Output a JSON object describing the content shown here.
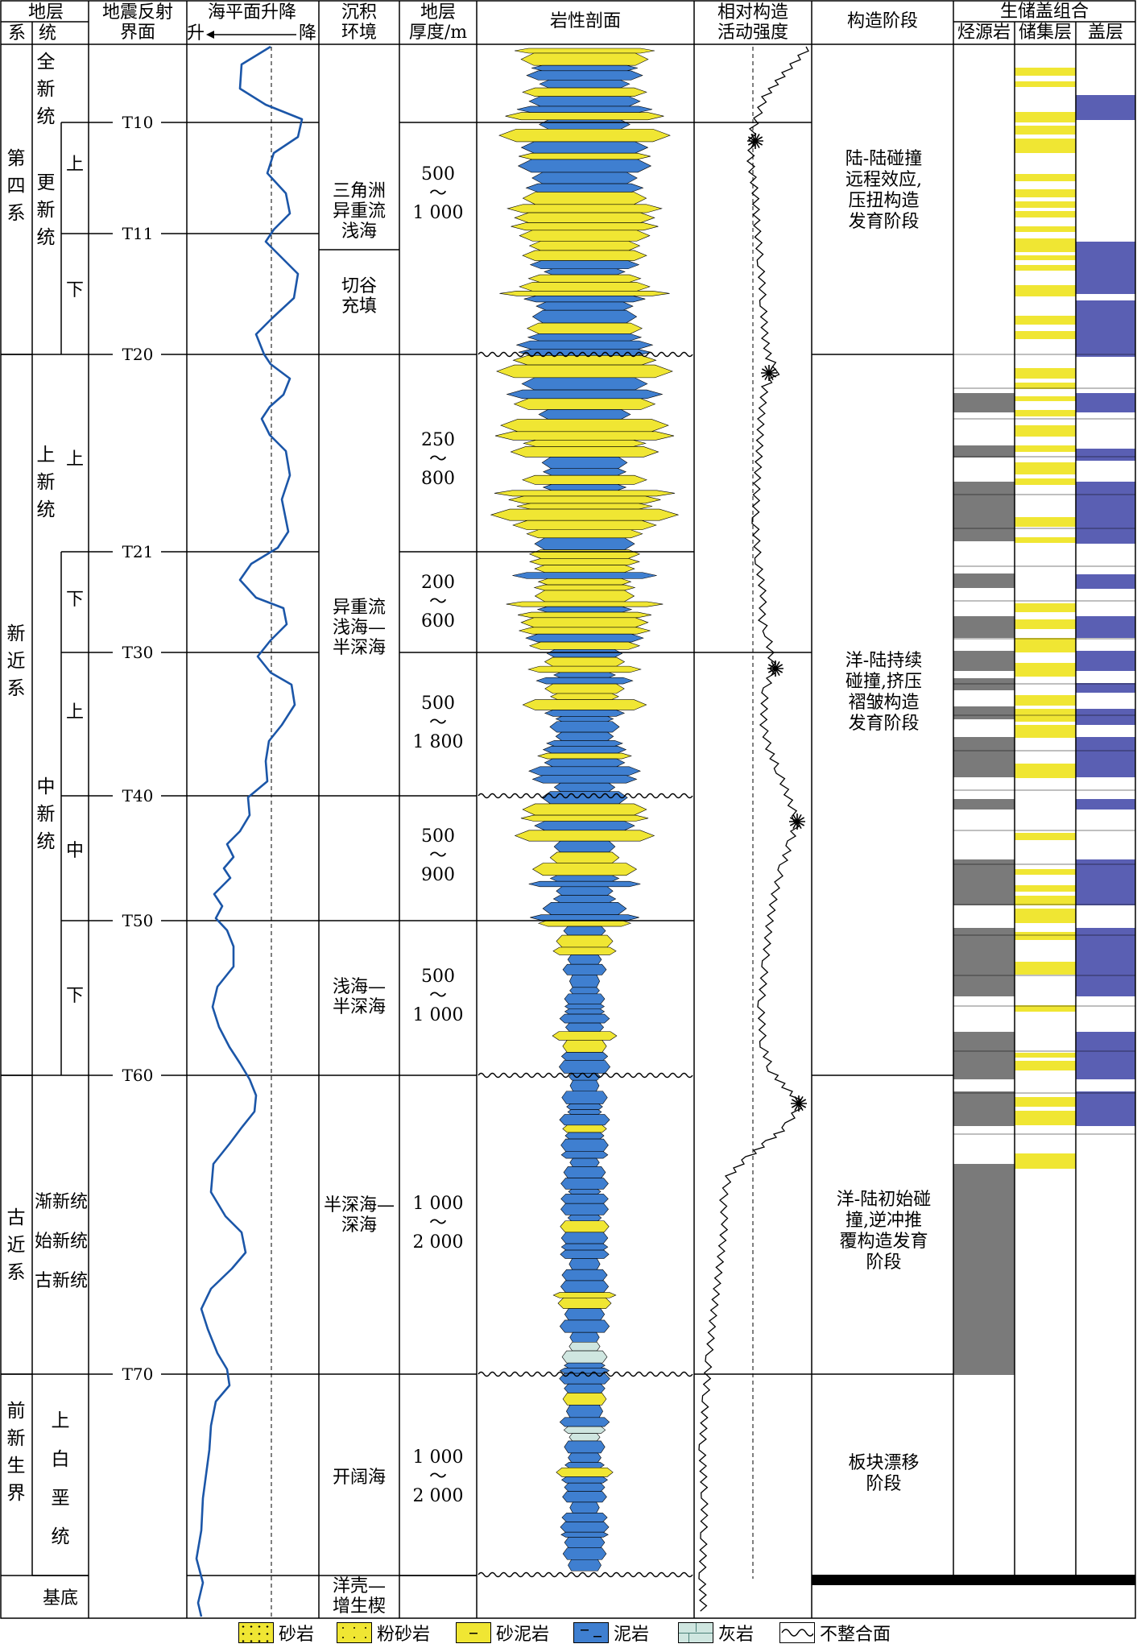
{
  "headers": {
    "stratum": "地层",
    "system": "系",
    "series": "统",
    "seismic_l1": "地震反射",
    "seismic_l2": "界面",
    "sealevel": "海平面升降",
    "rise": "升",
    "fall": "降",
    "env_l1": "沉积",
    "env_l2": "环境",
    "thick_l1": "地层",
    "thick_l2": "厚度/m",
    "litho": "岩性剖面",
    "tect_l1": "相对构造",
    "tect_l2": "活动强度",
    "stage": "构造阶段",
    "sys_group": "生储盖组合",
    "source": "烃源岩",
    "reservoir": "储集层",
    "cap": "盖层"
  },
  "systems": {
    "quaternary": "第四系",
    "neogene": "新近系",
    "paleogene": "古近系",
    "prepaleo": "前新生界",
    "basement": "基底"
  },
  "series": {
    "holocene": "全新统",
    "pleistocene": "更新统",
    "pliocene": "上新统",
    "miocene": "中新统",
    "paleo_l1": "渐新统",
    "paleo_l2": "始新统",
    "paleo_l3": "古新统",
    "cretaceous": "上白垩统"
  },
  "subseries": {
    "upper": "上",
    "lower": "下",
    "middle": "中"
  },
  "horizons": [
    "T10",
    "T11",
    "T20",
    "T21",
    "T30",
    "T40",
    "T50",
    "T60",
    "T70"
  ],
  "environments": {
    "e1": [
      "三角洲",
      "异重流",
      "浅海"
    ],
    "e2": [
      "切谷",
      "充填"
    ],
    "e3": [
      "异重流",
      "浅海—",
      "半深海"
    ],
    "e4": [
      "浅海—",
      "半深海"
    ],
    "e5": [
      "半深海—",
      "深海"
    ],
    "e6": [
      "开阔海"
    ],
    "e7": [
      "洋壳—",
      "增生楔"
    ]
  },
  "thickness": {
    "t1": [
      "500",
      "～",
      "1 000"
    ],
    "t2": [
      "250",
      "～",
      "800"
    ],
    "t3": [
      "200",
      "～",
      "600"
    ],
    "t4": [
      "500",
      "～",
      "1 800"
    ],
    "t5": [
      "500",
      "～",
      "900"
    ],
    "t6": [
      "500",
      "～",
      "1 000"
    ],
    "t7": [
      "1 000",
      "～",
      "2 000"
    ],
    "t8": [
      "1 000",
      "～",
      "2 000"
    ]
  },
  "stages": {
    "s1": [
      "陆-陆碰撞",
      "远程效应,",
      "压扭构造",
      "发育阶段"
    ],
    "s2": [
      "洋-陆持续",
      "碰撞,挤压",
      "褶皱构造",
      "发育阶段"
    ],
    "s3": [
      "洋-陆初始碰",
      "撞,逆冲推",
      "覆构造发育",
      "阶段"
    ],
    "s4": [
      "板块漂移",
      "阶段"
    ]
  },
  "legend": {
    "sandstone": "砂岩",
    "siltstone": "粉砂岩",
    "sandy_mudstone": "砂泥岩",
    "mudstone": "泥岩",
    "limestone": "灰岩",
    "unconformity": "不整合面"
  },
  "colors": {
    "sand": "#f0e633",
    "mud": "#3f7fd0",
    "lime": "#cfe6e0",
    "source": "#7a7a7a",
    "cap": "#5a5fb3",
    "curve": "#1b56a8"
  }
}
